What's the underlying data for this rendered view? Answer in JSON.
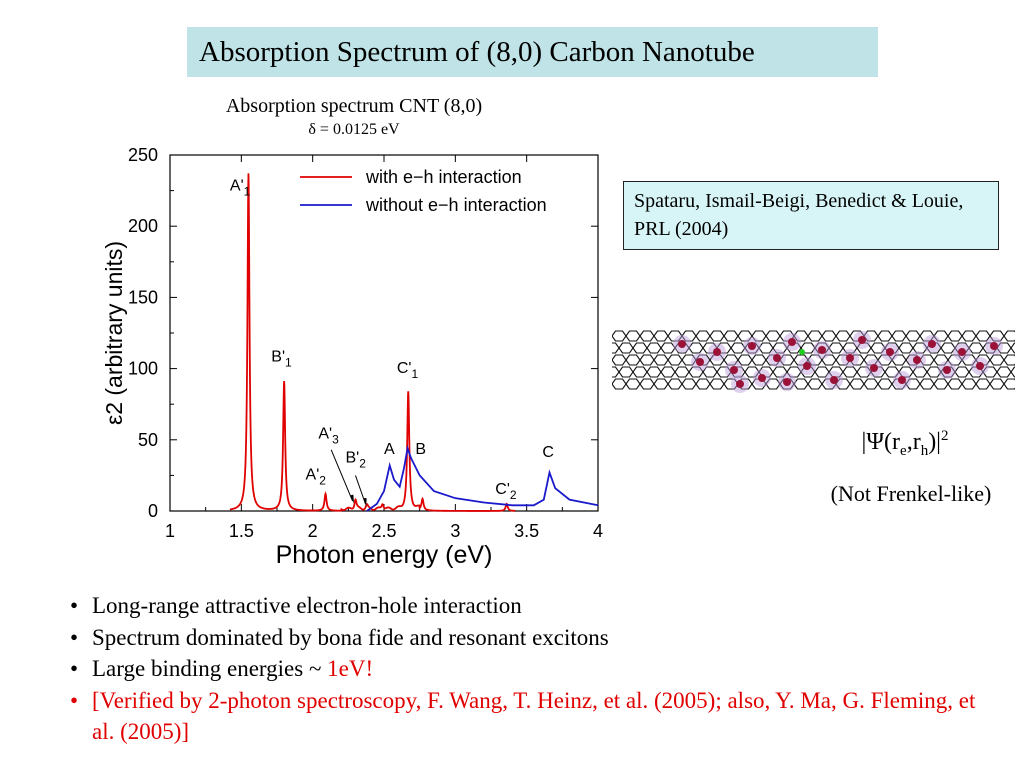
{
  "slide": {
    "title": "Absorption Spectrum of (8,0) Carbon Nanotube",
    "chart_title": "Absorption spectrum CNT (8,0)",
    "chart_subtitle": "δ = 0.0125 eV",
    "reference": "Spataru, Ismail-Beigi, Benedict & Louie, PRL (2004)",
    "psi_prefix": "|Ψ(r",
    "psi_e": "e",
    "psi_mid": ",r",
    "psi_h": "h",
    "psi_suffix": ")|",
    "psi_power": "2",
    "frenkel_note": "(Not Frenkel-like)",
    "bullets": [
      "Long-range attractive electron-hole interaction",
      "Spectrum dominated by bona fide and resonant excitons",
      "Large binding energies ~ "
    ],
    "binding_value": "1eV!",
    "verification_note": "[Verified by 2-photon spectroscopy, F. Wang, T. Heinz, et al. (2005); also, Y. Ma, G. Fleming, et al. (2005)]"
  },
  "chart_data": {
    "type": "line",
    "xlabel": "Photon energy (eV)",
    "ylabel": "ε2 (arbitrary units)",
    "xlim": [
      1,
      4
    ],
    "ylim": [
      0,
      250
    ],
    "x_ticks": [
      "1",
      "1.5",
      "2",
      "2.5",
      "3",
      "3.5",
      "4"
    ],
    "y_ticks": [
      "0",
      "50",
      "100",
      "150",
      "200",
      "250"
    ],
    "legend_position": "top-right",
    "colors": {
      "with": "#e00000",
      "without": "#1a1acc"
    },
    "series": [
      {
        "name": "with e−h interaction",
        "color": "#e00000",
        "peaks": [
          {
            "x": 1.55,
            "y": 237
          },
          {
            "x": 1.8,
            "y": 91
          },
          {
            "x": 2.09,
            "y": 12
          },
          {
            "x": 2.3,
            "y": 7
          },
          {
            "x": 2.38,
            "y": 3
          },
          {
            "x": 2.49,
            "y": 4
          },
          {
            "x": 2.67,
            "y": 82
          },
          {
            "x": 2.77,
            "y": 8
          },
          {
            "x": 3.36,
            "y": 5
          }
        ]
      },
      {
        "name": "without e−h interaction",
        "color": "#1a1acc",
        "points": [
          [
            2.38,
            0
          ],
          [
            2.45,
            5
          ],
          [
            2.5,
            14
          ],
          [
            2.54,
            32
          ],
          [
            2.57,
            22
          ],
          [
            2.61,
            17
          ],
          [
            2.64,
            30
          ],
          [
            2.665,
            44
          ],
          [
            2.69,
            37
          ],
          [
            2.75,
            25
          ],
          [
            2.85,
            14
          ],
          [
            3.0,
            9
          ],
          [
            3.2,
            6
          ],
          [
            3.4,
            4
          ],
          [
            3.55,
            4
          ],
          [
            3.62,
            8
          ],
          [
            3.66,
            27
          ],
          [
            3.7,
            16
          ],
          [
            3.8,
            8
          ],
          [
            4.0,
            4
          ]
        ]
      }
    ],
    "annotations": [
      {
        "label": "A'",
        "sub": "1",
        "x": 1.42,
        "y": 225
      },
      {
        "label": "B'",
        "sub": "1",
        "x": 1.71,
        "y": 105
      },
      {
        "label": "A'",
        "sub": "2",
        "x": 1.95,
        "y": 22
      },
      {
        "label": "A'",
        "sub": "3",
        "x": 2.04,
        "y": 51
      },
      {
        "label": "B'",
        "sub": "2",
        "x": 2.23,
        "y": 34
      },
      {
        "label": "C'",
        "sub": "1",
        "x": 2.59,
        "y": 97
      },
      {
        "label": "A",
        "sub": "",
        "x": 2.5,
        "y": 40
      },
      {
        "label": "B",
        "sub": "",
        "x": 2.72,
        "y": 40
      },
      {
        "label": "C'",
        "sub": "2",
        "x": 3.28,
        "y": 12
      },
      {
        "label": "C",
        "sub": "",
        "x": 3.61,
        "y": 38
      }
    ]
  }
}
